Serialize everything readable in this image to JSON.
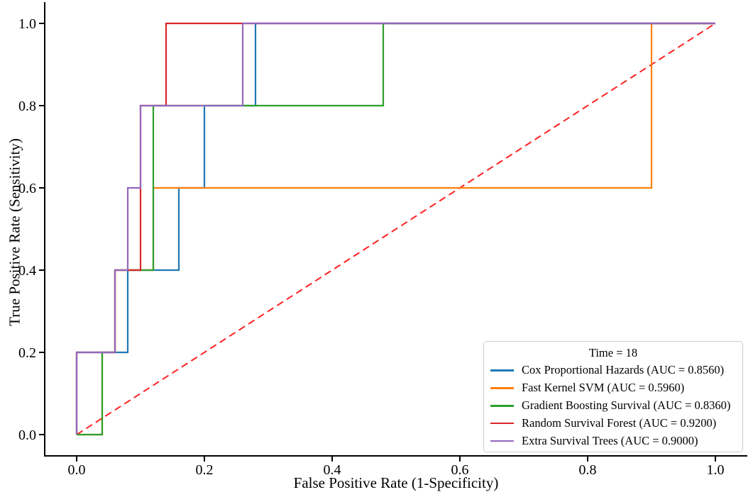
{
  "figure": {
    "kind": "matplotlib-roc-plot",
    "background": "#ffffff",
    "spine_color": "#000000"
  },
  "chart_data": {
    "type": "line",
    "subtype": "roc_step_curves",
    "title": "",
    "xlabel": "False Positive Rate (1-Specificity)",
    "ylabel": "True Positive Rate (Sensitivity)",
    "xlim": [
      -0.05,
      1.05
    ],
    "ylim": [
      -0.05,
      1.05
    ],
    "xticks": [
      0.0,
      0.2,
      0.4,
      0.6,
      0.8,
      1.0
    ],
    "yticks": [
      0.0,
      0.2,
      0.4,
      0.6,
      0.8,
      1.0
    ],
    "grid": false,
    "legend_position": "lower right",
    "legend_title": "Time = 18",
    "series": [
      {
        "name": "Cox Proportional Hazards",
        "auc": 0.856,
        "label": "Cox Proportional Hazards (AUC = 0.8560)",
        "color": "#1f77b4",
        "points": [
          [
            0,
            0
          ],
          [
            0,
            0.2
          ],
          [
            0.08,
            0.2
          ],
          [
            0.08,
            0.4
          ],
          [
            0.16,
            0.4
          ],
          [
            0.16,
            0.6
          ],
          [
            0.2,
            0.6
          ],
          [
            0.2,
            0.8
          ],
          [
            0.28,
            0.8
          ],
          [
            0.28,
            1
          ],
          [
            1,
            1
          ]
        ]
      },
      {
        "name": "Fast Kernel SVM",
        "auc": 0.596,
        "label": "Fast Kernel SVM (AUC = 0.5960)",
        "color": "#ff7f0e",
        "points": [
          [
            0,
            0
          ],
          [
            0.04,
            0
          ],
          [
            0.04,
            0.2
          ],
          [
            0.06,
            0.2
          ],
          [
            0.06,
            0.4
          ],
          [
            0.12,
            0.4
          ],
          [
            0.12,
            0.6
          ],
          [
            0.9,
            0.6
          ],
          [
            0.9,
            1
          ],
          [
            1,
            1
          ]
        ]
      },
      {
        "name": "Gradient Boosting Survival",
        "auc": 0.836,
        "label": "Gradient Boosting Survival (AUC = 0.8360)",
        "color": "#2ca02c",
        "points": [
          [
            0,
            0
          ],
          [
            0.04,
            0
          ],
          [
            0.04,
            0.2
          ],
          [
            0.06,
            0.2
          ],
          [
            0.06,
            0.4
          ],
          [
            0.12,
            0.4
          ],
          [
            0.12,
            0.8
          ],
          [
            0.48,
            0.8
          ],
          [
            0.48,
            1
          ],
          [
            1,
            1
          ]
        ]
      },
      {
        "name": "Random Survival Forest",
        "auc": 0.92,
        "label": "Random Survival Forest (AUC = 0.9200)",
        "color": "#d62728",
        "points": [
          [
            0,
            0
          ],
          [
            0,
            0.2
          ],
          [
            0.06,
            0.2
          ],
          [
            0.06,
            0.4
          ],
          [
            0.1,
            0.4
          ],
          [
            0.1,
            0.8
          ],
          [
            0.14,
            0.8
          ],
          [
            0.14,
            1
          ],
          [
            1,
            1
          ]
        ]
      },
      {
        "name": "Extra Survival Trees",
        "auc": 0.9,
        "label": "Extra Survival Trees (AUC = 0.9000)",
        "color": "#9467bd",
        "points": [
          [
            0,
            0
          ],
          [
            0,
            0.2
          ],
          [
            0.06,
            0.2
          ],
          [
            0.06,
            0.4
          ],
          [
            0.08,
            0.4
          ],
          [
            0.08,
            0.6
          ],
          [
            0.1,
            0.6
          ],
          [
            0.1,
            0.8
          ],
          [
            0.26,
            0.8
          ],
          [
            0.26,
            1
          ],
          [
            1,
            1
          ]
        ]
      }
    ],
    "reference_line": {
      "name": "chance-diagonal",
      "color": "#ff2222",
      "style": "dashed",
      "points": [
        [
          0,
          0
        ],
        [
          1,
          1
        ]
      ]
    }
  }
}
